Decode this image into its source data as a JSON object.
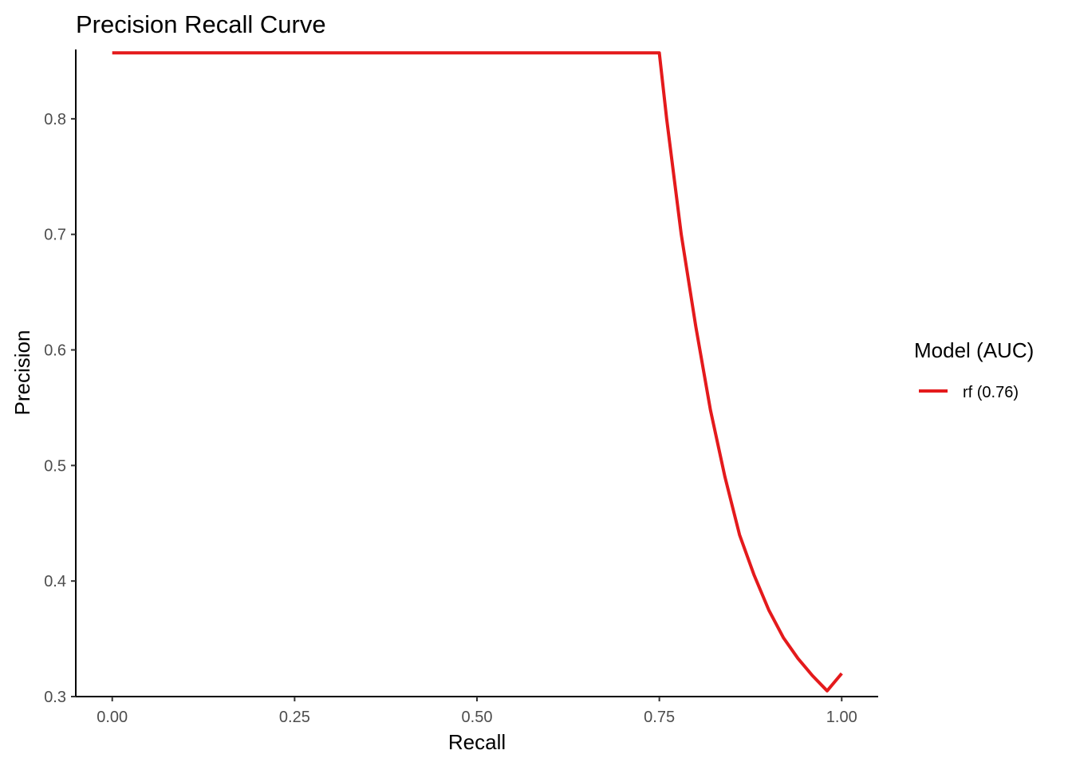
{
  "chart_data": {
    "type": "line",
    "title": "Precision Recall Curve",
    "xlabel": "Recall",
    "ylabel": "Precision",
    "xlim": [
      -0.05,
      1.05
    ],
    "ylim": [
      0.3,
      0.86
    ],
    "x_ticks": [
      0.0,
      0.25,
      0.5,
      0.75,
      1.0
    ],
    "x_tick_labels": [
      "0.00",
      "0.25",
      "0.50",
      "0.75",
      "1.00"
    ],
    "y_ticks": [
      0.3,
      0.4,
      0.5,
      0.6,
      0.7,
      0.8
    ],
    "y_tick_labels": [
      "0.3",
      "0.4",
      "0.5",
      "0.6",
      "0.7",
      "0.8"
    ],
    "grid": false,
    "legend": {
      "title": "Model (AUC)",
      "placement": "right"
    },
    "series": [
      {
        "name": "rf (0.76)",
        "color": "#e41a1c",
        "x": [
          0.0,
          0.75,
          0.76,
          0.78,
          0.8,
          0.82,
          0.84,
          0.86,
          0.88,
          0.9,
          0.92,
          0.94,
          0.96,
          0.98,
          1.0
        ],
        "y": [
          0.857,
          0.857,
          0.8,
          0.7,
          0.62,
          0.548,
          0.49,
          0.44,
          0.405,
          0.375,
          0.351,
          0.333,
          0.318,
          0.305,
          0.32
        ]
      }
    ]
  }
}
